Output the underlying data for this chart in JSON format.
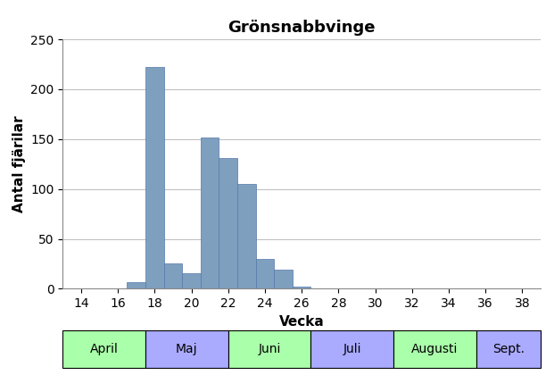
{
  "title": "Grönsnabbvinge",
  "xlabel": "Vecka",
  "ylabel": "Antal fjärilar",
  "bar_color": "#7F9FBF",
  "bar_edgecolor": "#5577AA",
  "weeks": [
    14,
    15,
    16,
    17,
    18,
    19,
    20,
    21,
    22,
    23,
    24,
    25,
    26,
    27,
    28,
    29,
    30,
    31,
    32,
    33,
    34,
    35,
    36,
    37,
    38
  ],
  "values": [
    0,
    0,
    0,
    7,
    222,
    25,
    16,
    152,
    131,
    105,
    30,
    19,
    2,
    0,
    0,
    0,
    0,
    0,
    0,
    0,
    0,
    0,
    0,
    0,
    0
  ],
  "ylim": [
    0,
    250
  ],
  "yticks": [
    0,
    50,
    100,
    150,
    200,
    250
  ],
  "xticks": [
    14,
    16,
    18,
    20,
    22,
    24,
    26,
    28,
    30,
    32,
    34,
    36,
    38
  ],
  "xlim": [
    13,
    39
  ],
  "month_labels": [
    {
      "label": "April",
      "x_start": 13,
      "x_end": 17.5,
      "color": "#AAFFAA"
    },
    {
      "label": "Maj",
      "x_start": 17.5,
      "x_end": 22,
      "color": "#AAAAFF"
    },
    {
      "label": "Juni",
      "x_start": 22,
      "x_end": 26.5,
      "color": "#AAFFAA"
    },
    {
      "label": "Juli",
      "x_start": 26.5,
      "x_end": 31,
      "color": "#AAAAFF"
    },
    {
      "label": "Augusti",
      "x_start": 31,
      "x_end": 35.5,
      "color": "#AAFFAA"
    },
    {
      "label": "Sept.",
      "x_start": 35.5,
      "x_end": 39,
      "color": "#AAAAFF"
    }
  ],
  "title_fontsize": 13,
  "axis_label_fontsize": 11,
  "tick_fontsize": 10,
  "month_fontsize": 10
}
